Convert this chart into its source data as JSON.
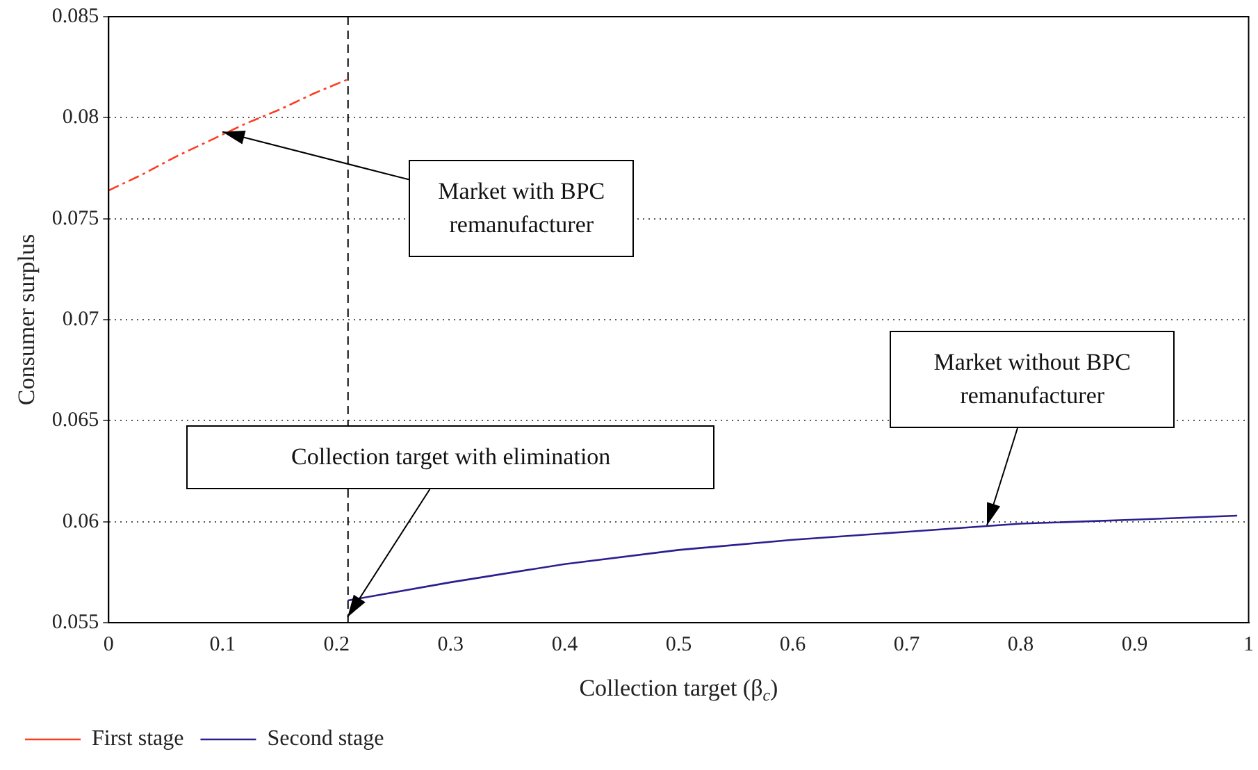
{
  "chart_data": {
    "type": "line",
    "xlabel": "Collection target (β$_{c}$)",
    "ylabel": "Consumer surplus",
    "xlim": [
      0,
      1
    ],
    "xticks": [
      0,
      0.1,
      0.2,
      0.3,
      0.4,
      0.5,
      0.6,
      0.7,
      0.8,
      0.9,
      1
    ],
    "ylim": [
      0.055,
      0.085
    ],
    "yticks": [
      0.055,
      0.06,
      0.065,
      0.07,
      0.075,
      0.08,
      0.085
    ],
    "grid": "y",
    "legend": "bottom left",
    "marker": "none",
    "series": [
      {
        "name": "First stage",
        "color": "#ff3b1f",
        "line_style": "dashdot",
        "x": [
          0,
          0.03,
          0.06,
          0.09,
          0.12,
          0.15,
          0.18,
          0.21
        ],
        "values": [
          0.0764,
          0.0772,
          0.0781,
          0.0789,
          0.0797,
          0.0804,
          0.0812,
          0.0819
        ]
      },
      {
        "name": "Second stage",
        "color": "#2b1f8f",
        "line_style": "solid",
        "x": [
          0.21,
          0.3,
          0.4,
          0.5,
          0.6,
          0.7,
          0.8,
          0.9,
          0.99
        ],
        "values": [
          0.0561,
          0.057,
          0.0579,
          0.0586,
          0.0591,
          0.0595,
          0.0599,
          0.0601,
          0.0603
        ]
      }
    ],
    "ref_lines": [
      {
        "axis": "x",
        "value": 0.21,
        "color": "#000000",
        "line_style": "dashed"
      }
    ],
    "annotations": [
      {
        "text": "Market with BPC remanufacturer",
        "x": 0.1,
        "y": 0.0793
      },
      {
        "text": "Market without BPC remanufacturer",
        "x": 0.77,
        "y": 0.0598
      },
      {
        "text": "Collection target with elimination",
        "x": 0.21,
        "y": 0.0553
      }
    ]
  }
}
